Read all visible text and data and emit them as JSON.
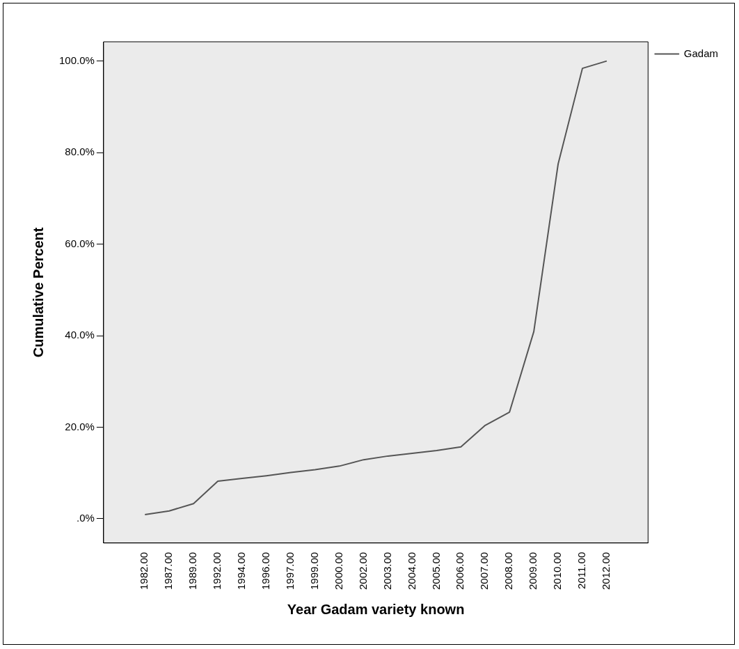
{
  "chart_data": {
    "type": "line",
    "xlabel": "Year Gadam variety known",
    "ylabel": "Cumulative Percent",
    "categories": [
      "1982.00",
      "1987.00",
      "1989.00",
      "1992.00",
      "1994.00",
      "1996.00",
      "1997.00",
      "1999.00",
      "2000.00",
      "2002.00",
      "2003.00",
      "2004.00",
      "2005.00",
      "2006.00",
      "2007.00",
      "2008.00",
      "2009.00",
      "2010.00",
      "2011.00",
      "2012.00"
    ],
    "series": [
      {
        "name": "Gadam",
        "color": "#555555",
        "values": [
          0.9,
          1.7,
          3.3,
          8.2,
          8.8,
          9.4,
          10.1,
          10.7,
          11.5,
          12.9,
          13.7,
          14.3,
          14.9,
          15.7,
          20.4,
          23.3,
          40.9,
          77.5,
          98.4,
          100
        ]
      }
    ],
    "ylim": [
      -5.3,
      104.2
    ],
    "yticks": [
      {
        "value": 0,
        "label": ".0%"
      },
      {
        "value": 20,
        "label": "20.0%"
      },
      {
        "value": 40,
        "label": "40.0%"
      },
      {
        "value": 60,
        "label": "60.0%"
      },
      {
        "value": 80,
        "label": "80.0%"
      },
      {
        "value": 100,
        "label": "100.0%"
      }
    ],
    "legend": "top right",
    "marker": "none",
    "line_style": "solid",
    "grid": false
  }
}
